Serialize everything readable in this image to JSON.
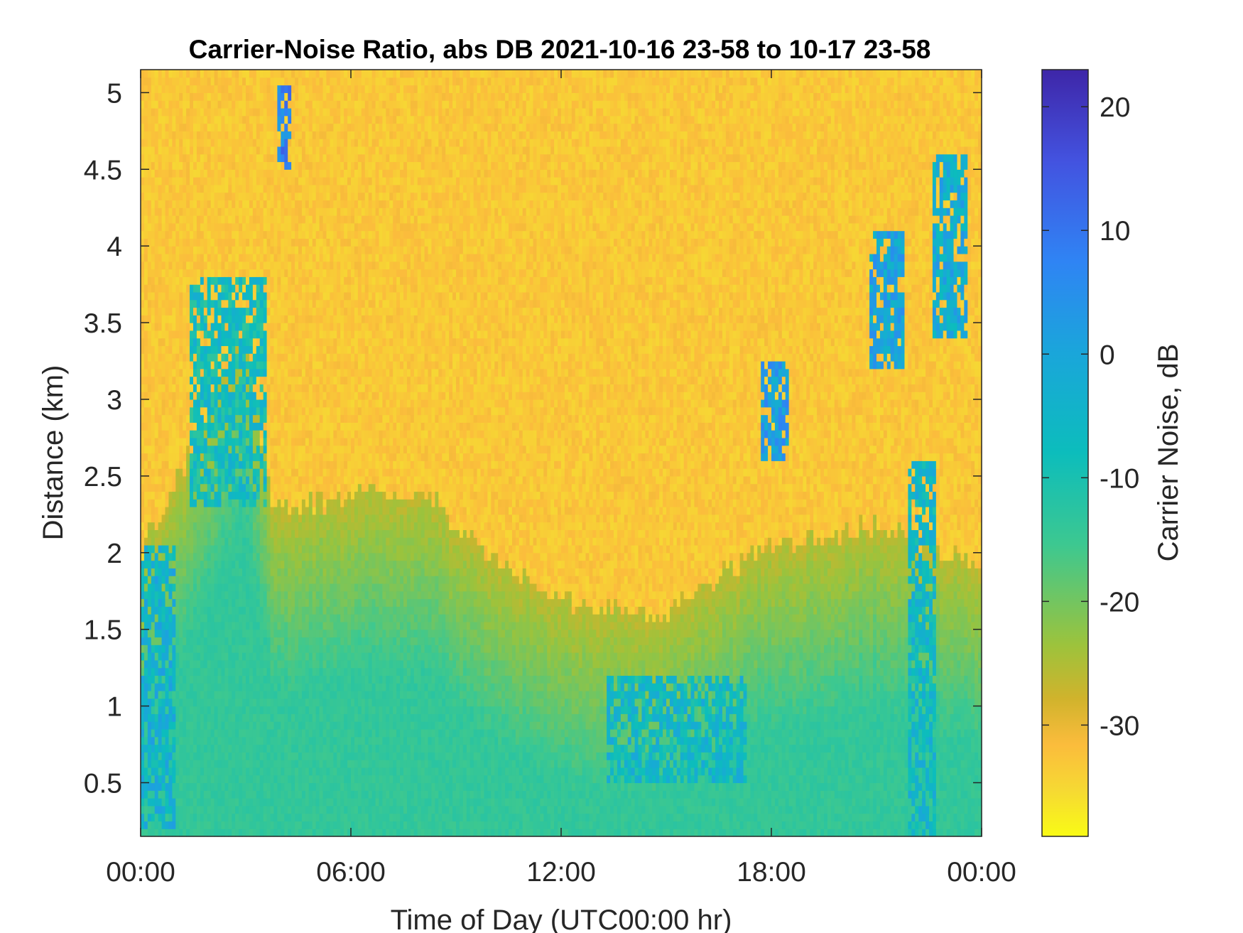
{
  "chart_data": {
    "type": "heatmap",
    "title": "Carrier-Noise Ratio, abs DB 2021-10-16 23-58 to 10-17 23-58",
    "xlabel": "Time of Day (UTC00:00 hr)",
    "ylabel": "Distance (km)",
    "x_ticks": [
      {
        "value": 0,
        "label": "00:00"
      },
      {
        "value": 6,
        "label": "06:00"
      },
      {
        "value": 12,
        "label": "12:00"
      },
      {
        "value": 18,
        "label": "18:00"
      },
      {
        "value": 24,
        "label": "00:00"
      }
    ],
    "y_ticks": [
      {
        "value": 0.5,
        "label": "0.5"
      },
      {
        "value": 1.0,
        "label": "1"
      },
      {
        "value": 1.5,
        "label": "1.5"
      },
      {
        "value": 2.0,
        "label": "2"
      },
      {
        "value": 2.5,
        "label": "2.5"
      },
      {
        "value": 3.0,
        "label": "3"
      },
      {
        "value": 3.5,
        "label": "3.5"
      },
      {
        "value": 4.0,
        "label": "4"
      },
      {
        "value": 4.5,
        "label": "4.5"
      },
      {
        "value": 5.0,
        "label": "5"
      }
    ],
    "xlim": [
      0,
      24
    ],
    "ylim": [
      0.15,
      5.15
    ],
    "colorbar": {
      "label": "Carrier Noise, dB",
      "clim": [
        -39,
        23
      ],
      "ticks": [
        {
          "value": 20,
          "label": "20"
        },
        {
          "value": 10,
          "label": "10"
        },
        {
          "value": 0,
          "label": "0"
        },
        {
          "value": -10,
          "label": "-10"
        },
        {
          "value": -20,
          "label": "-20"
        },
        {
          "value": -30,
          "label": "-30"
        }
      ],
      "colormap": "parula-reversed"
    },
    "background_level_db": -33,
    "low_layer_tops_km": [
      {
        "hour": 0.0,
        "top": 2.0
      },
      {
        "hour": 3.0,
        "top": 3.4
      },
      {
        "hour": 3.8,
        "top": 2.3
      },
      {
        "hour": 8.0,
        "top": 2.4
      },
      {
        "hour": 10.0,
        "top": 2.0
      },
      {
        "hour": 12.0,
        "top": 1.7
      },
      {
        "hour": 15.0,
        "top": 1.6
      },
      {
        "hour": 17.5,
        "top": 2.0
      },
      {
        "hour": 21.0,
        "top": 2.2
      },
      {
        "hour": 24.0,
        "top": 1.9
      }
    ],
    "features": [
      {
        "name": "early-plume",
        "hour_range": [
          0.0,
          1.0
        ],
        "km_range": [
          0.2,
          2.05
        ],
        "level_db": -4
      },
      {
        "name": "rising-band",
        "hour_range": [
          1.4,
          3.6
        ],
        "km_range": [
          2.3,
          3.8
        ],
        "level_db": -8
      },
      {
        "name": "thin-streak",
        "hour_range": [
          3.9,
          4.3
        ],
        "km_range": [
          4.5,
          5.05
        ],
        "level_db": 8
      },
      {
        "name": "midday-layer",
        "hour_range": [
          13.3,
          17.3
        ],
        "km_range": [
          0.5,
          1.2
        ],
        "level_db": -6
      },
      {
        "name": "cloud-patch",
        "hour_range": [
          17.7,
          18.5
        ],
        "km_range": [
          2.6,
          3.25
        ],
        "level_db": 2
      },
      {
        "name": "upper-cloud-a",
        "hour_range": [
          20.8,
          21.8
        ],
        "km_range": [
          3.2,
          4.1
        ],
        "level_db": 0
      },
      {
        "name": "upper-cloud-b",
        "hour_range": [
          22.6,
          23.6
        ],
        "km_range": [
          3.4,
          4.6
        ],
        "level_db": -2
      },
      {
        "name": "late-column",
        "hour_range": [
          21.9,
          22.7
        ],
        "km_range": [
          0.15,
          2.6
        ],
        "level_db": -6
      }
    ]
  }
}
